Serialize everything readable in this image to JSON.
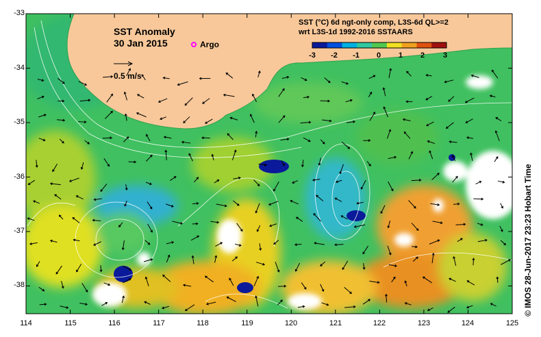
{
  "title": "SST Anomaly",
  "date": "30 Jan 2015",
  "argo_label": "Argo",
  "scale_label": "0.5 m/s",
  "description_line1": "SST (°C) 6d ngt-only comp, L3S-6d QL>=2",
  "description_line2": "wrt L3S-1d 1992-2016 SSTAARS",
  "colorbar": {
    "ticks": [
      "-3",
      "-2",
      "-1",
      "0",
      "1",
      "2",
      "3"
    ],
    "colors": [
      "#0a1a9a",
      "#0050e0",
      "#00b0e0",
      "#30c8a0",
      "#50c850",
      "#f0e020",
      "#f0a020",
      "#e05010",
      "#a01010"
    ]
  },
  "x_ticks": [
    "114",
    "115",
    "116",
    "117",
    "118",
    "119",
    "120",
    "121",
    "122",
    "123",
    "124",
    "125"
  ],
  "y_ticks": [
    "-33",
    "-34",
    "-35",
    "-36",
    "-37",
    "-38"
  ],
  "credit": "© IMOS 28-Jun-2017 23:23 Hobart Time",
  "colors": {
    "land": "#f8c89a",
    "argo": "#ff00ff"
  },
  "icons": [
    "argo-float-icon",
    "scale-arrow-icon"
  ]
}
